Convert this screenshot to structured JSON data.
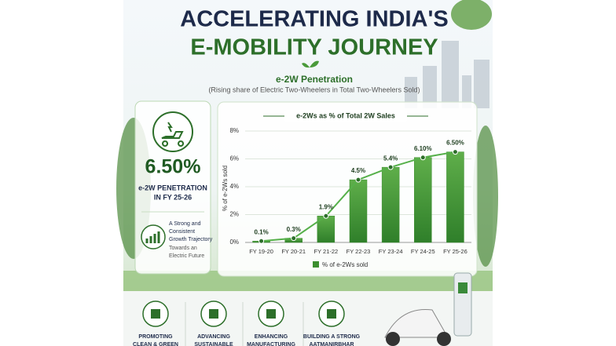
{
  "header": {
    "title_line1": "ACCELERATING INDIA'S",
    "title_line2": "E-MOBILITY JOURNEY",
    "subtitle": "e-2W Penetration",
    "description": "(Rising share of Electric Two-Wheelers in Total Two-Wheelers Sold)"
  },
  "card": {
    "headline": "6.50%",
    "caption_lines": [
      "e-2W PENETRATION",
      "IN FY 25-26"
    ],
    "note_lines": [
      "A Strong and",
      "Consistent",
      "Growth Trajectory",
      "Towards an",
      "Electric Future"
    ]
  },
  "chart_data": {
    "type": "bar",
    "title": "e-2Ws as  % of Total 2W Sales",
    "y_label": "% of e-2Ws sold",
    "categories": [
      "FY 19-20",
      "FY 20-21",
      "FY 21-22",
      "FY 22-23",
      "FY 23-24",
      "FY 24-25",
      "FY 25-26"
    ],
    "series": [
      {
        "name": "% of e-2Ws sold",
        "color": "#3c8f2f",
        "values": [
          0.1,
          0.3,
          1.9,
          4.5,
          5.4,
          6.1,
          6.5
        ],
        "value_labels": [
          "0.1%",
          "0.3%",
          "1.9%",
          "4.5%",
          "5.4%",
          "6.10%",
          "6.50%"
        ]
      }
    ],
    "line_overlay": true,
    "line_color": "#56b04a",
    "ylim": [
      0,
      8
    ],
    "yticks": [
      {
        "value": 0,
        "label": "0%"
      },
      {
        "value": 2,
        "label": "2%"
      },
      {
        "value": 4,
        "label": "4%"
      },
      {
        "value": 6,
        "label": "6%"
      },
      {
        "value": 8,
        "label": "8%"
      }
    ],
    "grid": true
  },
  "footer": {
    "items": [
      [
        "PROMOTING",
        "CLEAN & GREEN"
      ],
      [
        "ADVANCING",
        "SUSTAINABLE"
      ],
      [
        "ENHANCING",
        "MANUFACTURING"
      ],
      [
        "BUILDING A STRONG",
        "AATMANIRBHAR"
      ]
    ]
  }
}
